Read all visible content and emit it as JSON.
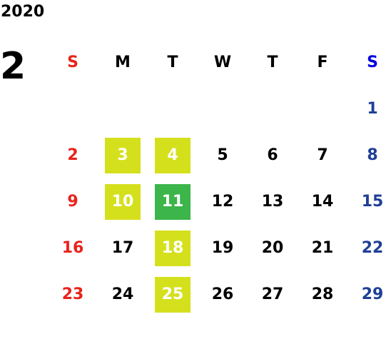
{
  "year": "2020",
  "month": "2",
  "colors": {
    "sunday": "#e8231c",
    "saturday": "#1f3f96",
    "saturday_header": "#0000e0",
    "weekday": "#000000",
    "highlight_yellow": "#d5e01d",
    "highlight_green": "#3cb54a"
  },
  "weekdays": [
    "S",
    "M",
    "T",
    "W",
    "T",
    "F",
    "S"
  ],
  "weeks": [
    [
      null,
      null,
      null,
      null,
      null,
      null,
      {
        "day": "1"
      }
    ],
    [
      {
        "day": "2"
      },
      {
        "day": "3",
        "highlight": "yellow"
      },
      {
        "day": "4",
        "highlight": "yellow"
      },
      {
        "day": "5"
      },
      {
        "day": "6"
      },
      {
        "day": "7"
      },
      {
        "day": "8"
      }
    ],
    [
      {
        "day": "9"
      },
      {
        "day": "10",
        "highlight": "yellow"
      },
      {
        "day": "11",
        "highlight": "green"
      },
      {
        "day": "12"
      },
      {
        "day": "13"
      },
      {
        "day": "14"
      },
      {
        "day": "15"
      }
    ],
    [
      {
        "day": "16"
      },
      {
        "day": "17"
      },
      {
        "day": "18",
        "highlight": "yellow"
      },
      {
        "day": "19"
      },
      {
        "day": "20"
      },
      {
        "day": "21"
      },
      {
        "day": "22"
      }
    ],
    [
      {
        "day": "23"
      },
      {
        "day": "24"
      },
      {
        "day": "25",
        "highlight": "yellow"
      },
      {
        "day": "26"
      },
      {
        "day": "27"
      },
      {
        "day": "28"
      },
      {
        "day": "29"
      }
    ]
  ]
}
